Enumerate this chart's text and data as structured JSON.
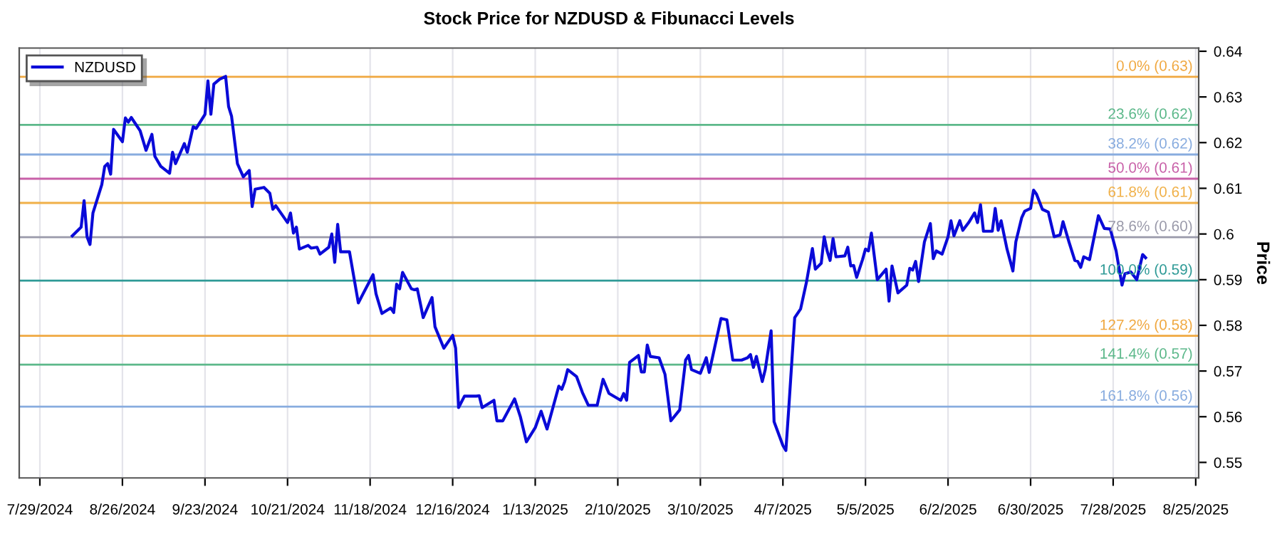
{
  "chart_data": {
    "type": "line",
    "title": "Stock Price for NZDUSD & Fibunacci Levels",
    "ylabel": "Price",
    "xlim": [
      "2024-07-22",
      "2025-08-26"
    ],
    "ylim": [
      0.5466,
      0.6407
    ],
    "yticks": [
      0.55,
      0.56,
      0.57,
      0.58,
      0.59,
      0.6,
      0.61,
      0.62,
      0.63,
      0.64
    ],
    "xticks": [
      {
        "value": "2024-07-29",
        "label": "7/29/2024"
      },
      {
        "value": "2024-08-26",
        "label": "8/26/2024"
      },
      {
        "value": "2024-09-23",
        "label": "9/23/2024"
      },
      {
        "value": "2024-10-21",
        "label": "10/21/2024"
      },
      {
        "value": "2024-11-18",
        "label": "11/18/2024"
      },
      {
        "value": "2024-12-16",
        "label": "12/16/2024"
      },
      {
        "value": "2025-01-13",
        "label": "1/13/2025"
      },
      {
        "value": "2025-02-10",
        "label": "2/10/2025"
      },
      {
        "value": "2025-03-10",
        "label": "3/10/2025"
      },
      {
        "value": "2025-04-07",
        "label": "4/7/2025"
      },
      {
        "value": "2025-05-05",
        "label": "5/5/2025"
      },
      {
        "value": "2025-06-02",
        "label": "6/2/2025"
      },
      {
        "value": "2025-06-30",
        "label": "6/30/2025"
      },
      {
        "value": "2025-07-28",
        "label": "7/28/2025"
      },
      {
        "value": "2025-08-25",
        "label": "8/25/2025"
      }
    ],
    "grid": "x",
    "legend": "top left",
    "line_style": "solid",
    "marker": "none",
    "series": [
      {
        "name": "NZDUSD",
        "color": "#0a0ad8",
        "x": [
          "2024-08-09",
          "2024-08-12",
          "2024-08-13",
          "2024-08-14",
          "2024-08-15",
          "2024-08-16",
          "2024-08-19",
          "2024-08-20",
          "2024-08-21",
          "2024-08-22",
          "2024-08-23",
          "2024-08-26",
          "2024-08-27",
          "2024-08-28",
          "2024-08-29",
          "2024-09-01",
          "2024-09-03",
          "2024-09-05",
          "2024-09-06",
          "2024-09-08",
          "2024-09-11",
          "2024-09-12",
          "2024-09-13",
          "2024-09-16",
          "2024-09-17",
          "2024-09-19",
          "2024-09-20",
          "2024-09-23",
          "2024-09-24",
          "2024-09-25",
          "2024-09-26",
          "2024-09-28",
          "2024-09-30",
          "2024-10-01",
          "2024-10-02",
          "2024-10-04",
          "2024-10-06",
          "2024-10-08",
          "2024-10-09",
          "2024-10-10",
          "2024-10-13",
          "2024-10-15",
          "2024-10-16",
          "2024-10-17",
          "2024-10-21",
          "2024-10-22",
          "2024-10-23",
          "2024-10-24",
          "2024-10-25",
          "2024-10-28",
          "2024-10-29",
          "2024-10-31",
          "2024-11-01",
          "2024-11-04",
          "2024-11-05",
          "2024-11-06",
          "2024-11-07",
          "2024-11-08",
          "2024-11-11",
          "2024-11-14",
          "2024-11-19",
          "2024-11-20",
          "2024-11-22",
          "2024-11-25",
          "2024-11-26",
          "2024-11-27",
          "2024-11-28",
          "2024-11-29",
          "2024-12-02",
          "2024-12-03",
          "2024-12-04",
          "2024-12-05",
          "2024-12-06",
          "2024-12-09",
          "2024-12-10",
          "2024-12-13",
          "2024-12-16",
          "2024-12-17",
          "2024-12-18",
          "2024-12-20",
          "2024-12-24",
          "2024-12-25",
          "2024-12-26",
          "2024-12-30",
          "2024-12-31",
          "2025-01-02",
          "2025-01-06",
          "2025-01-08",
          "2025-01-10",
          "2025-01-13",
          "2025-01-15",
          "2025-01-17",
          "2025-01-21",
          "2025-01-22",
          "2025-01-23",
          "2025-01-24",
          "2025-01-27",
          "2025-01-29",
          "2025-01-31",
          "2025-02-03",
          "2025-02-05",
          "2025-02-07",
          "2025-02-11",
          "2025-02-12",
          "2025-02-13",
          "2025-02-14",
          "2025-02-17",
          "2025-02-18",
          "2025-02-19",
          "2025-02-20",
          "2025-02-21",
          "2025-02-24",
          "2025-02-26",
          "2025-02-28",
          "2025-03-03",
          "2025-03-05",
          "2025-03-06",
          "2025-03-07",
          "2025-03-10",
          "2025-03-12",
          "2025-03-13",
          "2025-03-17",
          "2025-03-19",
          "2025-03-21",
          "2025-03-24",
          "2025-03-26",
          "2025-03-27",
          "2025-03-28",
          "2025-03-29",
          "2025-03-31",
          "2025-04-01",
          "2025-04-03",
          "2025-04-04",
          "2025-04-07",
          "2025-04-08",
          "2025-04-09",
          "2025-04-11",
          "2025-04-13",
          "2025-04-15",
          "2025-04-17",
          "2025-04-18",
          "2025-04-20",
          "2025-04-21",
          "2025-04-22",
          "2025-04-23",
          "2025-04-24",
          "2025-04-25",
          "2025-04-28",
          "2025-04-29",
          "2025-04-30",
          "2025-05-01",
          "2025-05-02",
          "2025-05-04",
          "2025-05-05",
          "2025-05-06",
          "2025-05-07",
          "2025-05-09",
          "2025-05-12",
          "2025-05-13",
          "2025-05-14",
          "2025-05-16",
          "2025-05-19",
          "2025-05-20",
          "2025-05-21",
          "2025-05-22",
          "2025-05-23",
          "2025-05-25",
          "2025-05-27",
          "2025-05-28",
          "2025-05-29",
          "2025-05-31",
          "2025-06-02",
          "2025-06-03",
          "2025-06-04",
          "2025-06-06",
          "2025-06-07",
          "2025-06-09",
          "2025-06-11",
          "2025-06-12",
          "2025-06-13",
          "2025-06-14",
          "2025-06-17",
          "2025-06-18",
          "2025-06-19",
          "2025-06-20",
          "2025-06-22",
          "2025-06-24",
          "2025-06-25",
          "2025-06-27",
          "2025-06-28",
          "2025-06-30",
          "2025-07-01",
          "2025-07-02",
          "2025-07-04",
          "2025-07-06",
          "2025-07-08",
          "2025-07-10",
          "2025-07-11",
          "2025-07-13",
          "2025-07-15",
          "2025-07-16",
          "2025-07-17",
          "2025-07-18",
          "2025-07-20",
          "2025-07-23",
          "2025-07-25",
          "2025-07-27",
          "2025-07-29",
          "2025-07-31",
          "2025-08-01",
          "2025-08-03",
          "2025-08-05",
          "2025-08-07",
          "2025-08-08"
        ],
        "values": [
          0.5996,
          0.6015,
          0.6073,
          0.5994,
          0.5977,
          0.6046,
          0.6108,
          0.6148,
          0.6154,
          0.6131,
          0.6229,
          0.6202,
          0.6254,
          0.6245,
          0.6255,
          0.6226,
          0.6183,
          0.6218,
          0.617,
          0.6148,
          0.6133,
          0.6179,
          0.6154,
          0.6198,
          0.6179,
          0.6235,
          0.6231,
          0.6262,
          0.6335,
          0.6262,
          0.6328,
          0.6339,
          0.6345,
          0.6279,
          0.6258,
          0.6154,
          0.6125,
          0.6139,
          0.606,
          0.6098,
          0.6102,
          0.6089,
          0.6054,
          0.6062,
          0.6025,
          0.6046,
          0.6002,
          0.6015,
          0.5967,
          0.5975,
          0.5969,
          0.5971,
          0.5956,
          0.5971,
          0.6,
          0.5938,
          0.6021,
          0.5961,
          0.5961,
          0.5849,
          0.5911,
          0.5869,
          0.5826,
          0.5838,
          0.5828,
          0.589,
          0.588,
          0.5916,
          0.588,
          0.5878,
          0.588,
          0.5849,
          0.5817,
          0.5861,
          0.5797,
          0.575,
          0.5778,
          0.575,
          0.562,
          0.5645,
          0.5645,
          0.5646,
          0.562,
          0.5636,
          0.5591,
          0.5591,
          0.5639,
          0.5599,
          0.5545,
          0.5576,
          0.5612,
          0.5573,
          0.5667,
          0.566,
          0.5677,
          0.5703,
          0.5688,
          0.5653,
          0.5625,
          0.5625,
          0.5682,
          0.5651,
          0.5636,
          0.5651,
          0.5636,
          0.5719,
          0.5734,
          0.5698,
          0.5698,
          0.5757,
          0.5732,
          0.5729,
          0.5693,
          0.5591,
          0.5615,
          0.5724,
          0.5734,
          0.5703,
          0.5695,
          0.5729,
          0.5697,
          0.5815,
          0.5812,
          0.5724,
          0.5724,
          0.5729,
          0.5736,
          0.5708,
          0.5732,
          0.5677,
          0.5703,
          0.5788,
          0.5589,
          0.5537,
          0.5526,
          0.562,
          0.5817,
          0.5836,
          0.5895,
          0.5968,
          0.5923,
          0.5936,
          0.5994,
          0.5963,
          0.5942,
          0.599,
          0.595,
          0.5952,
          0.5971,
          0.593,
          0.5931,
          0.5905,
          0.5944,
          0.5967,
          0.5963,
          0.6002,
          0.59,
          0.5923,
          0.5853,
          0.593,
          0.5871,
          0.5888,
          0.5925,
          0.5921,
          0.594,
          0.5896,
          0.5983,
          0.6023,
          0.5946,
          0.5963,
          0.5956,
          0.5994,
          0.6029,
          0.5996,
          0.6029,
          0.6008,
          0.6025,
          0.6046,
          0.6025,
          0.6064,
          0.6006,
          0.6006,
          0.6056,
          0.6008,
          0.6029,
          0.5967,
          0.5919,
          0.5983,
          0.6036,
          0.605,
          0.6056,
          0.6096,
          0.6087,
          0.6054,
          0.6048,
          0.5994,
          0.5998,
          0.6027,
          0.5983,
          0.5942,
          0.594,
          0.5927,
          0.595,
          0.5944,
          0.604,
          0.6012,
          0.6011,
          0.5963,
          0.5888,
          0.5913,
          0.5917,
          0.59,
          0.5955,
          0.5948
        ]
      }
    ],
    "ref_lines": [
      {
        "axis": "y",
        "value": 0.6344,
        "label": "0.0% (0.63)",
        "color": "#f0a840"
      },
      {
        "axis": "y",
        "value": 0.6239,
        "label": "23.6% (0.62)",
        "color": "#5cb88a"
      },
      {
        "axis": "y",
        "value": 0.6174,
        "label": "38.2% (0.62)",
        "color": "#88acdf"
      },
      {
        "axis": "y",
        "value": 0.6121,
        "label": "50.0% (0.61)",
        "color": "#c860a8"
      },
      {
        "axis": "y",
        "value": 0.6068,
        "label": "61.8% (0.61)",
        "color": "#f0b048"
      },
      {
        "axis": "y",
        "value": 0.5993,
        "label": "78.6% (0.60)",
        "color": "#9a9aaa"
      },
      {
        "axis": "y",
        "value": 0.5898,
        "label": "100.0% (0.59)",
        "color": "#2e9a96"
      },
      {
        "axis": "y",
        "value": 0.5777,
        "label": "127.2% (0.58)",
        "color": "#f0a840"
      },
      {
        "axis": "y",
        "value": 0.5714,
        "label": "141.4% (0.57)",
        "color": "#5cb88a"
      },
      {
        "axis": "y",
        "value": 0.5622,
        "label": "161.8% (0.56)",
        "color": "#88acdf"
      }
    ]
  }
}
